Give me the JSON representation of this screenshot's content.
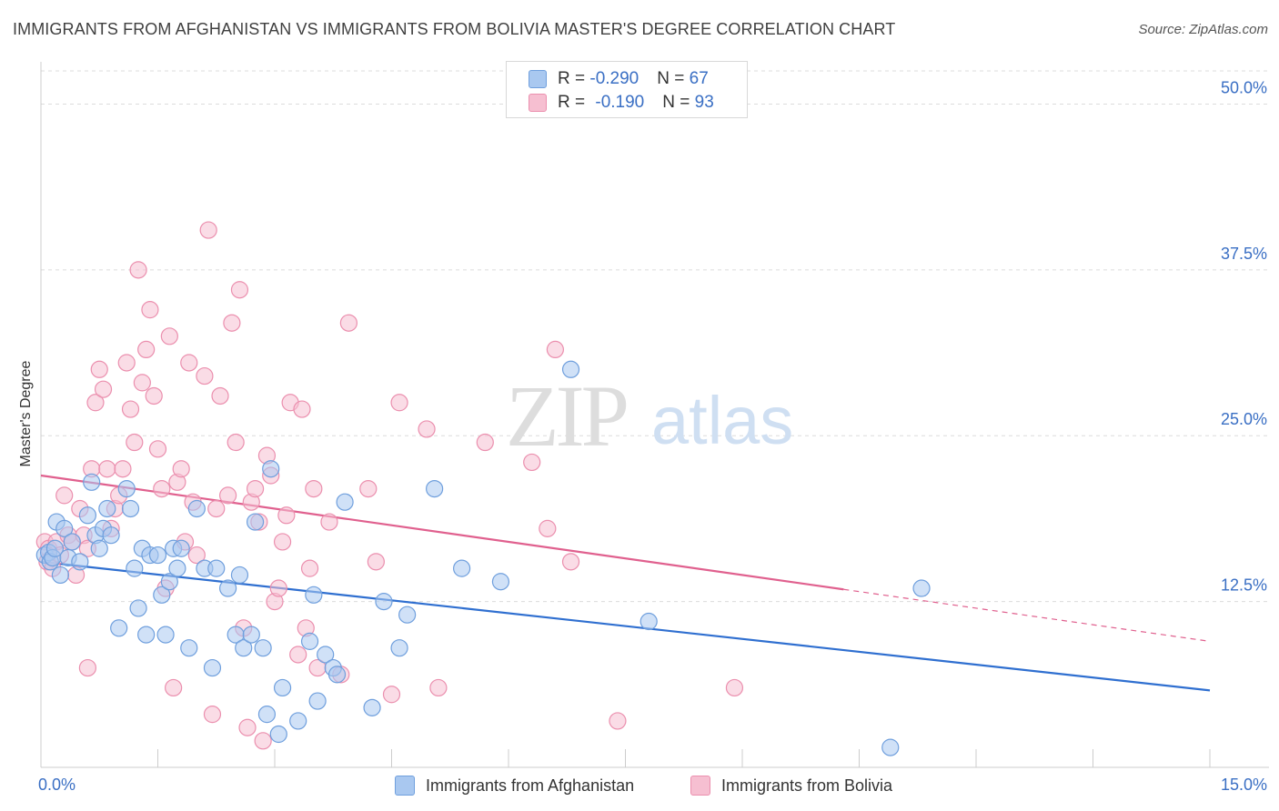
{
  "title": "IMMIGRANTS FROM AFGHANISTAN VS IMMIGRANTS FROM BOLIVIA MASTER'S DEGREE CORRELATION CHART",
  "source": "Source: ZipAtlas.com",
  "watermark": {
    "zip": "ZIP",
    "atlas": "atlas"
  },
  "legend": {
    "rows": [
      {
        "r_label": "R = ",
        "r_value": "-0.290",
        "n_label": "N = ",
        "n_value": "67"
      },
      {
        "r_label": "R = ",
        "r_value": "-0.190",
        "n_label": "N = ",
        "n_value": "93"
      }
    ]
  },
  "bottom_legend": [
    "Immigrants from Afghanistan",
    "Immigrants from Bolivia"
  ],
  "colors": {
    "afghanistan_fill": "#a9c8f0",
    "afghanistan_stroke": "#6f9fdd",
    "afghanistan_line": "#2f6fd0",
    "bolivia_fill": "#f6bfd1",
    "bolivia_stroke": "#eb8fae",
    "bolivia_line": "#e0608e",
    "tick_label": "#3a6fc4",
    "grid": "#dcdcdc"
  },
  "chart_data": {
    "type": "scatter",
    "title": "IMMIGRANTS FROM AFGHANISTAN VS IMMIGRANTS FROM BOLIVIA MASTER'S DEGREE CORRELATION CHART",
    "xlabel": "",
    "ylabel": "Master's Degree",
    "xlim": [
      0,
      15
    ],
    "ylim": [
      0,
      52.5
    ],
    "x_tick_labels": [
      "0.0%",
      "15.0%"
    ],
    "y_ticks": [
      12.5,
      25.0,
      37.5,
      50.0
    ],
    "y_tick_labels": [
      "12.5%",
      "25.0%",
      "37.5%",
      "50.0%"
    ],
    "grid": true,
    "legend_placement": "bottom-center",
    "series": [
      {
        "name": "Immigrants from Afghanistan",
        "r": -0.29,
        "n": 67,
        "trend": {
          "x": [
            0,
            15
          ],
          "y": [
            15.5,
            5.8
          ],
          "solid_to": 15
        },
        "points": [
          [
            0.05,
            16.0
          ],
          [
            0.1,
            16.2
          ],
          [
            0.12,
            15.5
          ],
          [
            0.15,
            15.8
          ],
          [
            0.18,
            16.5
          ],
          [
            0.2,
            18.5
          ],
          [
            0.25,
            14.5
          ],
          [
            0.3,
            18.0
          ],
          [
            0.35,
            15.8
          ],
          [
            0.4,
            17.0
          ],
          [
            0.5,
            15.5
          ],
          [
            0.6,
            19.0
          ],
          [
            0.65,
            21.5
          ],
          [
            0.7,
            17.5
          ],
          [
            0.75,
            16.5
          ],
          [
            0.8,
            18.0
          ],
          [
            0.85,
            19.5
          ],
          [
            0.9,
            17.5
          ],
          [
            1.0,
            10.5
          ],
          [
            1.1,
            21.0
          ],
          [
            1.15,
            19.5
          ],
          [
            1.2,
            15.0
          ],
          [
            1.25,
            12.0
          ],
          [
            1.3,
            16.5
          ],
          [
            1.35,
            10.0
          ],
          [
            1.4,
            16.0
          ],
          [
            1.5,
            16.0
          ],
          [
            1.55,
            13.0
          ],
          [
            1.6,
            10.0
          ],
          [
            1.65,
            14.0
          ],
          [
            1.7,
            16.5
          ],
          [
            1.75,
            15.0
          ],
          [
            1.8,
            16.5
          ],
          [
            1.9,
            9.0
          ],
          [
            2.0,
            19.5
          ],
          [
            2.1,
            15.0
          ],
          [
            2.2,
            7.5
          ],
          [
            2.25,
            15.0
          ],
          [
            2.4,
            13.5
          ],
          [
            2.5,
            10.0
          ],
          [
            2.55,
            14.5
          ],
          [
            2.6,
            9.0
          ],
          [
            2.7,
            10.0
          ],
          [
            2.75,
            18.5
          ],
          [
            2.85,
            9.0
          ],
          [
            2.9,
            4.0
          ],
          [
            2.95,
            22.5
          ],
          [
            3.1,
            6.0
          ],
          [
            3.05,
            2.5
          ],
          [
            3.3,
            3.5
          ],
          [
            3.45,
            9.5
          ],
          [
            3.5,
            13.0
          ],
          [
            3.55,
            5.0
          ],
          [
            3.65,
            8.5
          ],
          [
            3.75,
            7.5
          ],
          [
            3.8,
            7.0
          ],
          [
            3.9,
            20.0
          ],
          [
            4.25,
            4.5
          ],
          [
            4.4,
            12.5
          ],
          [
            4.6,
            9.0
          ],
          [
            4.7,
            11.5
          ],
          [
            5.05,
            21.0
          ],
          [
            5.4,
            15.0
          ],
          [
            5.9,
            14.0
          ],
          [
            6.8,
            30.0
          ],
          [
            7.8,
            11.0
          ],
          [
            11.3,
            13.5
          ],
          [
            10.9,
            1.5
          ]
        ]
      },
      {
        "name": "Immigrants from Bolivia",
        "r": -0.19,
        "n": 93,
        "trend": {
          "x": [
            0,
            15
          ],
          "y": [
            22.0,
            9.5
          ],
          "solid_to": 10.3
        },
        "points": [
          [
            0.05,
            17.0
          ],
          [
            0.08,
            15.5
          ],
          [
            0.1,
            16.5
          ],
          [
            0.15,
            15.0
          ],
          [
            0.2,
            17.0
          ],
          [
            0.25,
            16.0
          ],
          [
            0.3,
            20.5
          ],
          [
            0.35,
            17.5
          ],
          [
            0.4,
            17.0
          ],
          [
            0.45,
            14.5
          ],
          [
            0.5,
            19.5
          ],
          [
            0.55,
            17.5
          ],
          [
            0.6,
            16.5
          ],
          [
            0.65,
            22.5
          ],
          [
            0.7,
            27.5
          ],
          [
            0.75,
            30.0
          ],
          [
            0.8,
            28.5
          ],
          [
            0.85,
            22.5
          ],
          [
            0.9,
            18.0
          ],
          [
            0.95,
            19.5
          ],
          [
            1.0,
            20.5
          ],
          [
            1.05,
            22.5
          ],
          [
            1.1,
            30.5
          ],
          [
            1.15,
            27.0
          ],
          [
            1.2,
            24.5
          ],
          [
            1.25,
            37.5
          ],
          [
            1.3,
            29.0
          ],
          [
            1.35,
            31.5
          ],
          [
            1.4,
            34.5
          ],
          [
            1.45,
            28.0
          ],
          [
            1.5,
            24.0
          ],
          [
            1.55,
            21.0
          ],
          [
            1.6,
            13.5
          ],
          [
            1.65,
            32.5
          ],
          [
            1.7,
            6.0
          ],
          [
            1.75,
            21.5
          ],
          [
            1.8,
            22.5
          ],
          [
            1.85,
            17.0
          ],
          [
            1.9,
            30.5
          ],
          [
            1.95,
            20.0
          ],
          [
            2.0,
            16.0
          ],
          [
            2.1,
            29.5
          ],
          [
            2.15,
            40.5
          ],
          [
            2.2,
            4.0
          ],
          [
            2.25,
            19.5
          ],
          [
            2.3,
            28.0
          ],
          [
            2.4,
            20.5
          ],
          [
            2.45,
            33.5
          ],
          [
            2.5,
            24.5
          ],
          [
            2.55,
            36.0
          ],
          [
            2.6,
            10.5
          ],
          [
            2.65,
            3.0
          ],
          [
            2.7,
            20.0
          ],
          [
            2.75,
            21.0
          ],
          [
            2.8,
            18.5
          ],
          [
            2.85,
            2.0
          ],
          [
            2.9,
            23.5
          ],
          [
            2.95,
            22.0
          ],
          [
            3.0,
            12.5
          ],
          [
            3.05,
            13.5
          ],
          [
            3.1,
            17.0
          ],
          [
            3.15,
            19.0
          ],
          [
            3.2,
            27.5
          ],
          [
            3.3,
            8.5
          ],
          [
            3.35,
            27.0
          ],
          [
            3.4,
            10.5
          ],
          [
            3.45,
            15.0
          ],
          [
            3.5,
            21.0
          ],
          [
            3.55,
            7.5
          ],
          [
            3.7,
            18.5
          ],
          [
            3.85,
            7.0
          ],
          [
            3.95,
            33.5
          ],
          [
            4.2,
            21.0
          ],
          [
            4.3,
            15.5
          ],
          [
            4.5,
            5.5
          ],
          [
            4.6,
            27.5
          ],
          [
            4.95,
            25.5
          ],
          [
            5.1,
            6.0
          ],
          [
            5.7,
            24.5
          ],
          [
            6.3,
            23.0
          ],
          [
            6.5,
            18.0
          ],
          [
            6.6,
            31.5
          ],
          [
            6.8,
            15.5
          ],
          [
            7.4,
            3.5
          ],
          [
            8.9,
            6.0
          ],
          [
            0.6,
            7.5
          ]
        ]
      }
    ]
  }
}
